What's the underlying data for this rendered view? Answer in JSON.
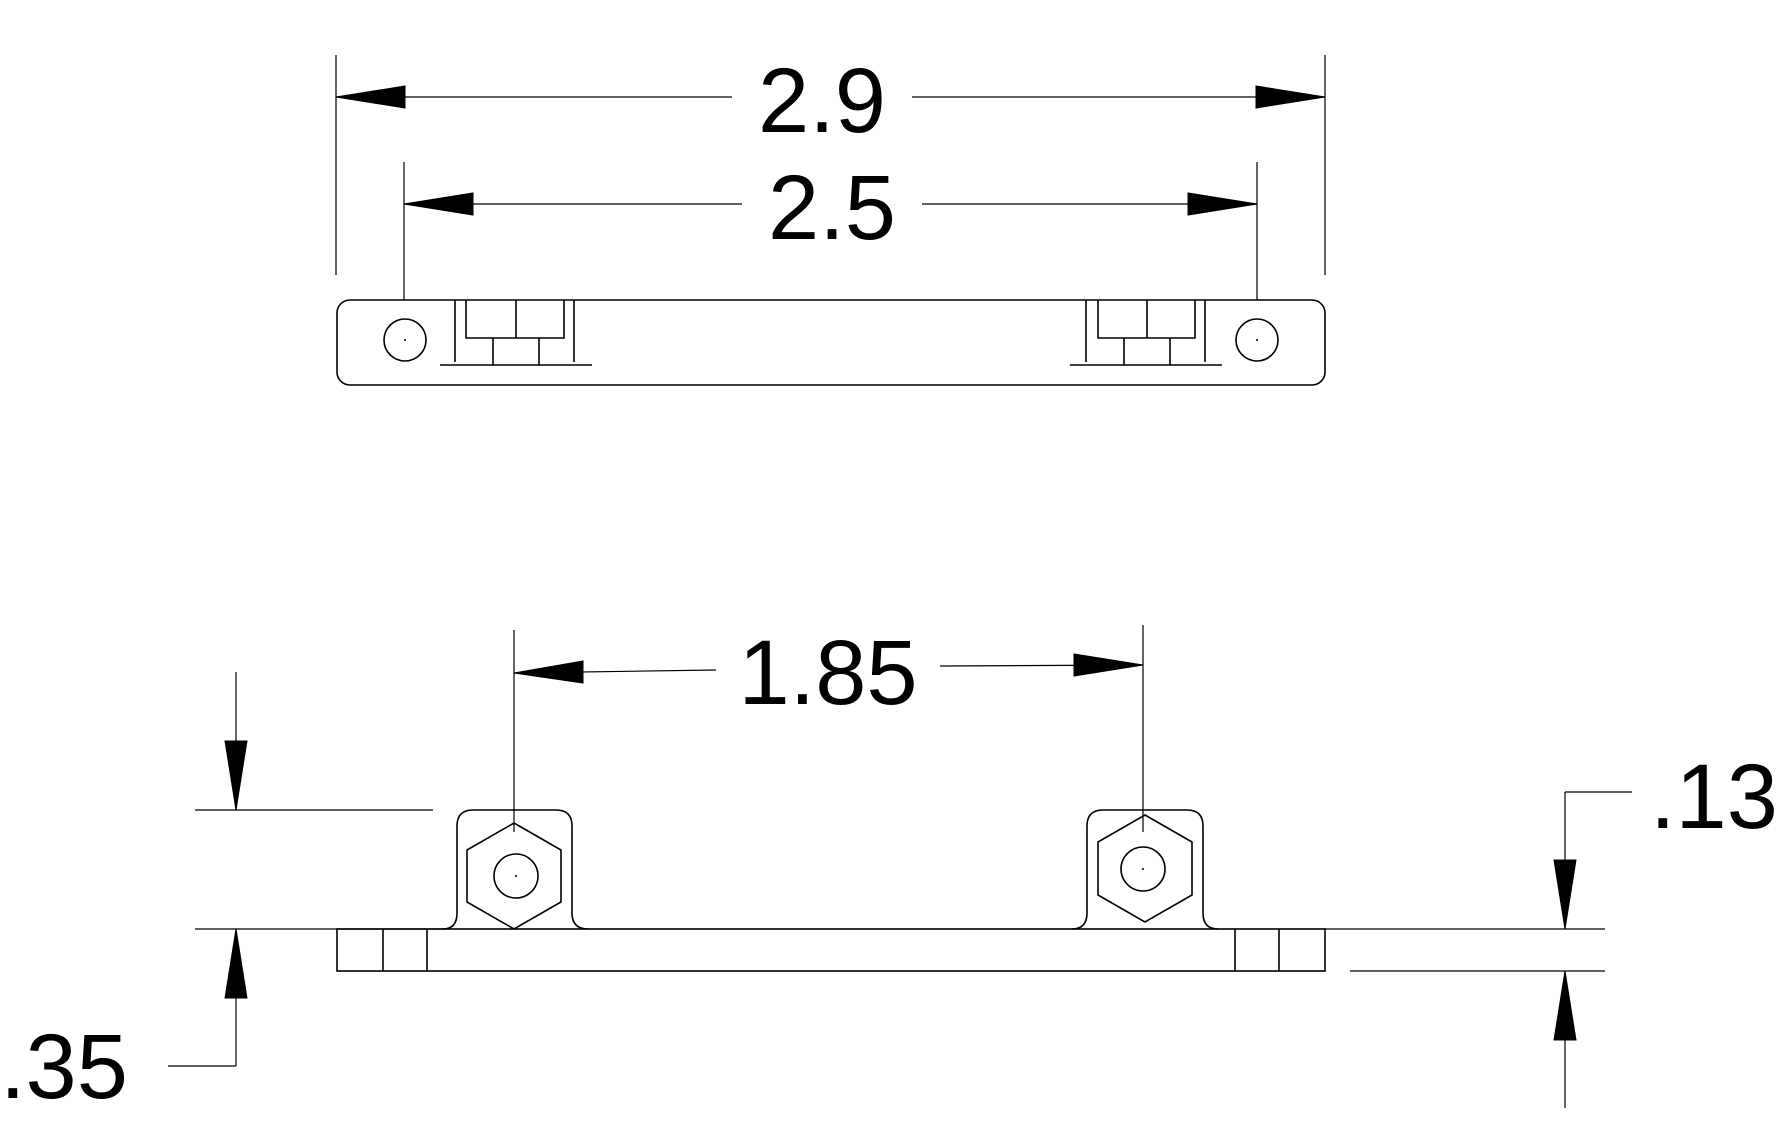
{
  "drawing": {
    "type": "technical-drawing",
    "views": [
      "top-view",
      "front-view"
    ],
    "dimensions": {
      "overall_length": "2.9",
      "hole_spacing": "2.5",
      "nut_spacing": "1.85",
      "total_height": ".35",
      "base_thickness": ".13"
    }
  }
}
